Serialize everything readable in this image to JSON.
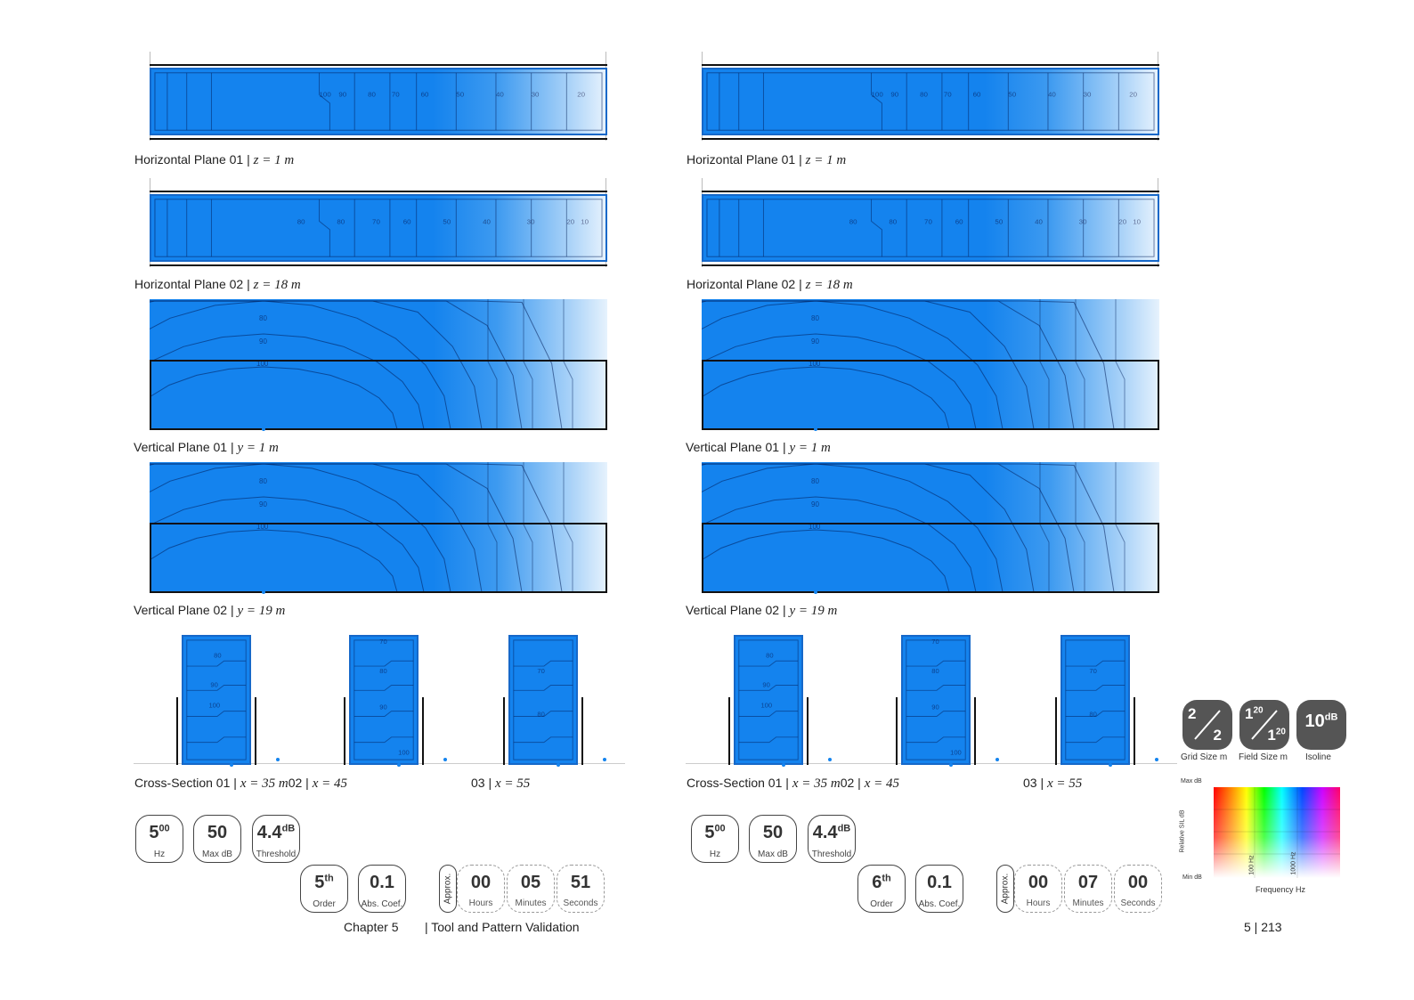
{
  "columns": [
    {
      "captions": {
        "h1": {
          "name": "Horizontal Plane 01",
          "sep": "|",
          "eq": "z = 1 m"
        },
        "h2": {
          "name": "Horizontal Plane 02",
          "sep": "|",
          "eq": "z = 18 m"
        },
        "v1": {
          "name": "Vertical Plane 01",
          "sep": "|",
          "eq": "y = 1 m"
        },
        "v2": {
          "name": "Vertical Plane 02",
          "sep": "|",
          "eq": "y = 19 m"
        },
        "cs": {
          "name": "Cross-Section 01",
          "sep": "|",
          "eq": "x = 35 m",
          "second": "02",
          "eq2": "x = 45",
          "third": "03",
          "eq3": "x = 55"
        }
      },
      "contour_labels": {
        "h1": [
          "100",
          "90",
          "80",
          "70",
          "60",
          "50",
          "40",
          "30",
          "20"
        ],
        "h2": [
          "80",
          "80",
          "70",
          "60",
          "50",
          "40",
          "30",
          "20",
          "10"
        ],
        "v1": [
          "80",
          "90",
          "100"
        ],
        "v2": [
          "80",
          "90",
          "100"
        ],
        "cs1": [
          "80",
          "90",
          "100"
        ],
        "cs2": [
          "70",
          "80",
          "90",
          "100"
        ],
        "cs3": [
          "70",
          "80"
        ]
      },
      "settings": {
        "freq": {
          "value": "5",
          "sup": "00",
          "label": "Hz"
        },
        "maxdb": {
          "value": "50",
          "label": "Max dB"
        },
        "threshold": {
          "value": "4.4",
          "sup": "dB",
          "label": "Threshold"
        },
        "order": {
          "value": "5",
          "sup": "th",
          "label": "Order"
        },
        "abs": {
          "value": "0.1",
          "label": "Abs. Coef."
        }
      },
      "time": {
        "approx": "Approx.",
        "hours": "00",
        "minutes": "05",
        "seconds": "51",
        "hours_label": "Hours",
        "minutes_label": "Minutes",
        "seconds_label": "Seconds"
      }
    },
    {
      "captions": {
        "h1": {
          "name": "Horizontal Plane 01",
          "sep": "|",
          "eq": "z = 1 m"
        },
        "h2": {
          "name": "Horizontal Plane 02",
          "sep": "|",
          "eq": "z = 18 m"
        },
        "v1": {
          "name": "Vertical Plane 01",
          "sep": "|",
          "eq": "y = 1 m"
        },
        "v2": {
          "name": "Vertical Plane 02",
          "sep": "|",
          "eq": "y = 19 m"
        },
        "cs": {
          "name": "Cross-Section 01",
          "sep": "|",
          "eq": "x = 35 m",
          "second": "02",
          "eq2": "x = 45",
          "third": "03",
          "eq3": "x = 55"
        }
      },
      "contour_labels": {
        "h1": [
          "100",
          "90",
          "80",
          "70",
          "60",
          "50",
          "40",
          "30",
          "20"
        ],
        "h2": [
          "80",
          "80",
          "70",
          "60",
          "50",
          "40",
          "30",
          "20",
          "10"
        ],
        "v1": [
          "80",
          "90",
          "100"
        ],
        "v2": [
          "80",
          "90",
          "100"
        ],
        "cs1": [
          "80",
          "90",
          "100"
        ],
        "cs2": [
          "70",
          "80",
          "90",
          "100"
        ],
        "cs3": [
          "70",
          "80"
        ]
      },
      "settings": {
        "freq": {
          "value": "5",
          "sup": "00",
          "label": "Hz"
        },
        "maxdb": {
          "value": "50",
          "label": "Max dB"
        },
        "threshold": {
          "value": "4.4",
          "sup": "dB",
          "label": "Threshold"
        },
        "order": {
          "value": "6",
          "sup": "th",
          "label": "Order"
        },
        "abs": {
          "value": "0.1",
          "label": "Abs. Coef."
        }
      },
      "time": {
        "approx": "Approx.",
        "hours": "00",
        "minutes": "07",
        "seconds": "00",
        "hours_label": "Hours",
        "minutes_label": "Minutes",
        "seconds_label": "Seconds"
      }
    }
  ],
  "grid_settings": {
    "grid": {
      "a": "2",
      "b": "2",
      "label": "Grid Size m"
    },
    "field": {
      "a": "1",
      "a_sup": "20",
      "b": "1",
      "b_sup": "20",
      "label": "Field Size m"
    },
    "isoline": {
      "value": "10",
      "sup": "dB",
      "label": "Isoline"
    }
  },
  "legend": {
    "max_label": "Max dB",
    "min_label": "Min dB",
    "y_label": "Relative SIL dB",
    "x_label": "Frequency Hz",
    "tick1": "100 Hz",
    "tick2": "1000 Hz",
    "colors": [
      "#ff0000",
      "#ff8800",
      "#ffff00",
      "#00ff00",
      "#00ffff",
      "#0044ff",
      "#cc00ff",
      "#ff0066"
    ]
  },
  "footer": {
    "chapter": "Chapter 5",
    "title": "| Tool and Pattern Validation",
    "page": "5 | 213"
  },
  "colors": {
    "field_blue": "#1483ee",
    "badge_dark": "#555555"
  }
}
